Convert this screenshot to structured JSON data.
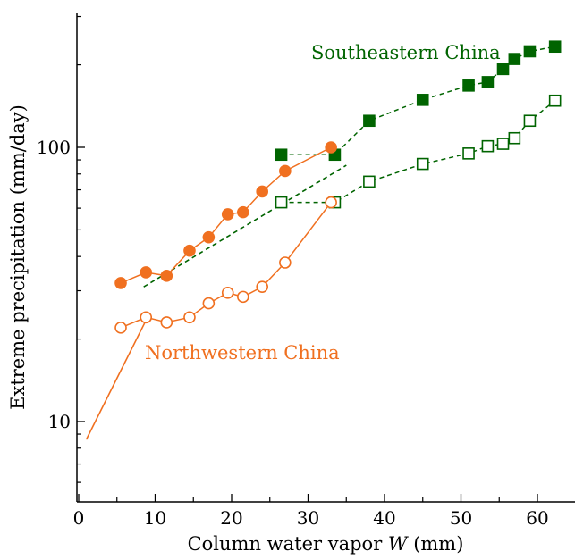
{
  "chart_data": {
    "type": "scatter",
    "xlabel_prefix": "Column water vapor ",
    "xlabel_var": "W",
    "xlabel_suffix": " (mm)",
    "ylabel": "Extreme precipitation (mm/day)",
    "xlim": [
      0,
      63
    ],
    "ylim": [
      5,
      300
    ],
    "yscale": "log",
    "xticks": [
      0,
      10,
      20,
      30,
      40,
      50,
      60
    ],
    "yticks": [
      10,
      100
    ],
    "grid": false,
    "annotations": [
      {
        "text": "Southeastern China",
        "color": "#006400"
      },
      {
        "text": "Northwestern China",
        "color": "#f07020"
      }
    ],
    "series": [
      {
        "name": "Southeastern China",
        "color": "#006400",
        "marker": "square-filled",
        "line": "dashed",
        "points": [
          [
            26.5,
            94
          ],
          [
            33.5,
            94
          ],
          [
            38,
            125
          ],
          [
            45,
            149
          ],
          [
            51,
            168
          ],
          [
            53.5,
            173
          ],
          [
            55.5,
            193
          ],
          [
            57,
            210
          ],
          [
            59,
            224
          ],
          [
            62.3,
            233
          ]
        ]
      },
      {
        "name": "Southeastern China",
        "color": "#006400",
        "marker": "square-open",
        "line": "dashed",
        "points": [
          [
            26.5,
            63
          ],
          [
            33.5,
            63
          ],
          [
            38,
            75
          ],
          [
            45,
            87
          ],
          [
            51,
            95
          ],
          [
            53.5,
            101
          ],
          [
            55.5,
            103
          ],
          [
            57,
            108
          ],
          [
            59,
            125
          ],
          [
            62.3,
            148
          ]
        ]
      },
      {
        "name": "Northwestern China",
        "color": "#f07020",
        "marker": "circle-filled",
        "line": "solid",
        "points": [
          [
            5.5,
            32
          ],
          [
            8.8,
            35
          ],
          [
            11.5,
            34
          ],
          [
            14.5,
            42
          ],
          [
            17,
            47
          ],
          [
            19.5,
            57
          ],
          [
            21.5,
            58
          ],
          [
            24,
            69
          ],
          [
            27,
            82
          ],
          [
            33,
            100
          ]
        ]
      },
      {
        "name": "Northwestern China",
        "color": "#f07020",
        "marker": "circle-open",
        "line": "solid",
        "points": [
          [
            5.5,
            22
          ],
          [
            8.8,
            24
          ],
          [
            11.5,
            23
          ],
          [
            14.5,
            24
          ],
          [
            17,
            27
          ],
          [
            19.5,
            29.5
          ],
          [
            21.5,
            28.5
          ],
          [
            24,
            31
          ],
          [
            27,
            38
          ],
          [
            33,
            63
          ]
        ]
      }
    ],
    "reference_lines": [
      {
        "color": "#006400",
        "style": "dashed",
        "points": [
          [
            8.5,
            31
          ],
          [
            35,
            86
          ]
        ]
      },
      {
        "color": "#f07020",
        "style": "solid",
        "points": [
          [
            1,
            8.6
          ],
          [
            9,
            24
          ]
        ]
      }
    ]
  }
}
